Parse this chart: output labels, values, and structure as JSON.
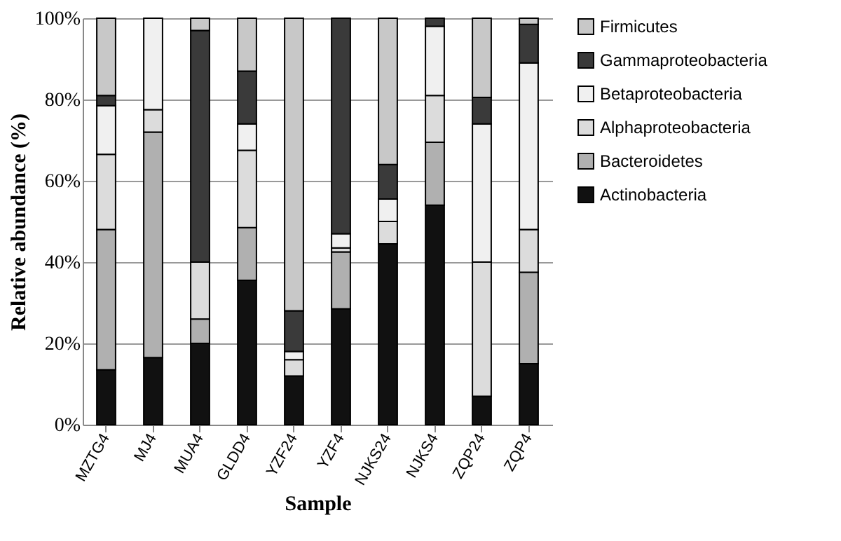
{
  "chart_data": {
    "type": "bar",
    "stacked": true,
    "xlabel": "Sample",
    "ylabel": "Relative abundance (%)",
    "categories": [
      "MZTG4",
      "MJ4",
      "MUA4",
      "GLDD4",
      "YZF24",
      "YZF4",
      "NJKS24",
      "NJKS4",
      "ZQP24",
      "ZQP4"
    ],
    "series": [
      {
        "name": "Actinobacteria",
        "color": "#111111",
        "values": [
          13.5,
          16.5,
          20,
          35.5,
          12,
          28.5,
          44.5,
          54,
          7,
          15
        ]
      },
      {
        "name": "Bacteroidetes",
        "color": "#b0b0b0",
        "values": [
          34.5,
          55.5,
          6,
          13,
          0,
          14,
          0,
          15.5,
          0,
          22.5
        ]
      },
      {
        "name": "Alphaproteobacteria",
        "color": "#dcdcdc",
        "values": [
          18.5,
          5.5,
          14,
          19,
          4,
          1,
          5.5,
          11.5,
          33,
          10.5
        ]
      },
      {
        "name": "Betaproteobacteria",
        "color": "#f0f0f0",
        "values": [
          12,
          22.5,
          0,
          6.5,
          2,
          3.5,
          5.5,
          17,
          34,
          41
        ]
      },
      {
        "name": "Gammaproteobacteria",
        "color": "#3a3a3a",
        "values": [
          2.5,
          0,
          57,
          13,
          10,
          53,
          8.5,
          2,
          6.5,
          9.5
        ]
      },
      {
        "name": "Firmicutes",
        "color": "#c8c8c8",
        "values": [
          19,
          0,
          3,
          13,
          72,
          0,
          36,
          0,
          19.5,
          1.5
        ]
      }
    ],
    "ylim": [
      0,
      100
    ],
    "yticks": [
      {
        "value": 0,
        "label": "0%"
      },
      {
        "value": 20,
        "label": "20%"
      },
      {
        "value": 40,
        "label": "40%"
      },
      {
        "value": 60,
        "label": "60%"
      },
      {
        "value": 80,
        "label": "80%"
      },
      {
        "value": 100,
        "label": "100%"
      }
    ],
    "grid": "y",
    "legend": "right"
  }
}
